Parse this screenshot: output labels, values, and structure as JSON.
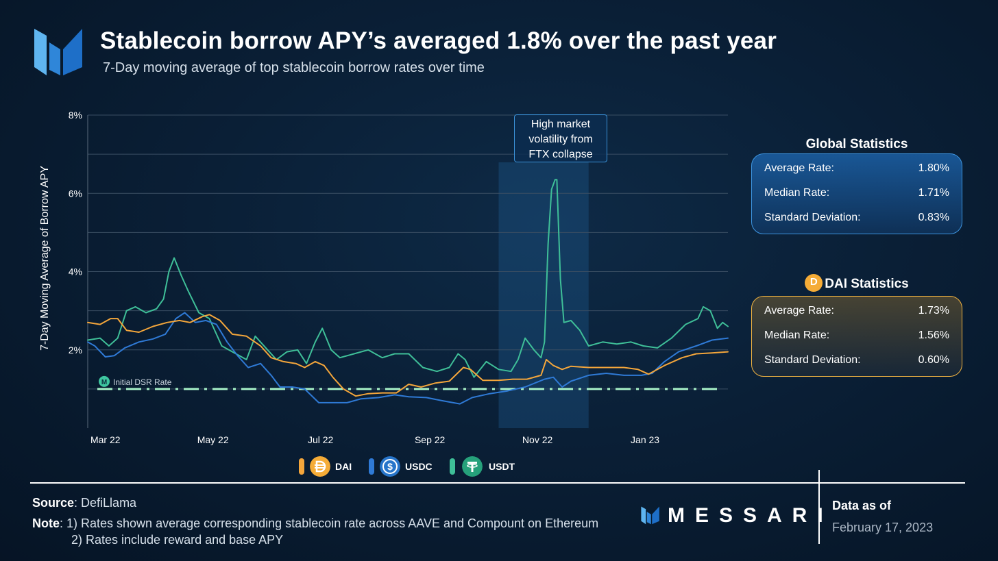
{
  "header": {
    "title": "Stablecoin borrow APY’s averaged 1.8% over the past year",
    "subtitle": "7-Day moving average of top stablecoin borrow rates over time"
  },
  "annotation": {
    "lines": [
      "High market",
      "volatility from",
      "FTX collapse"
    ]
  },
  "dsr_label": "Initial DSR Rate",
  "global_stats": {
    "title": "Global Statistics",
    "rows": [
      {
        "label": "Average Rate:",
        "value": "1.80%"
      },
      {
        "label": "Median Rate:",
        "value": "1.71%"
      },
      {
        "label": "Standard Deviation:",
        "value": "0.83%"
      }
    ]
  },
  "dai_stats": {
    "title": "DAI Statistics",
    "rows": [
      {
        "label": "Average Rate:",
        "value": "1.73%"
      },
      {
        "label": "Median Rate:",
        "value": "1.56%"
      },
      {
        "label": "Standard Deviation:",
        "value": "0.60%"
      }
    ]
  },
  "footer": {
    "source_label": "Source",
    "source_value": ": DefiLlama",
    "note_label": "Note",
    "note_line1": ": 1) Rates shown average corresponding stablecoin rate across AAVE and Compount on Ethereum",
    "note_line2": "2) Rates include reward and base APY",
    "brand": "MESSARI",
    "data_as_of_label": "Data as of",
    "data_as_of_date": "February 17, 2023"
  },
  "colors": {
    "DAI": "#f4a63b",
    "USDC": "#2f7ad6",
    "USDT": "#3fbf98",
    "dsr_line": "#a6f0c6",
    "grid": "#3a4e63",
    "highlight": "#1f5f94"
  },
  "chart_data": {
    "type": "line",
    "title": "Stablecoin borrow APY’s averaged 1.8% over the past year",
    "subtitle": "7-Day moving average of top stablecoin borrow rates over time",
    "ylabel": "7-Day Moving Average of Borrow APY",
    "xlabel": "",
    "x_range": [
      "2022-02-19",
      "2023-02-17"
    ],
    "x_ticks": [
      {
        "date": "2022-03-01",
        "label": "Mar 22"
      },
      {
        "date": "2022-05-01",
        "label": "May 22"
      },
      {
        "date": "2022-07-01",
        "label": "Jul 22"
      },
      {
        "date": "2022-09-01",
        "label": "Sep 22"
      },
      {
        "date": "2022-11-01",
        "label": "Nov 22"
      },
      {
        "date": "2023-01-01",
        "label": "Jan 23"
      }
    ],
    "ylim": [
      0,
      8
    ],
    "y_ticks": [
      {
        "value": 2,
        "label": "2%"
      },
      {
        "value": 4,
        "label": "4%"
      },
      {
        "value": 6,
        "label": "6%"
      },
      {
        "value": 8,
        "label": "8%"
      }
    ],
    "grid": true,
    "legend_position": "bottom",
    "reference_line": {
      "name": "Initial DSR Rate",
      "value": 1.0
    },
    "highlight_range": {
      "start": "2022-10-10",
      "end": "2022-11-30",
      "label": "High market volatility from FTX collapse"
    },
    "series": [
      {
        "name": "DAI",
        "points": [
          [
            "2022-02-19",
            2.7
          ],
          [
            "2022-02-26",
            2.65
          ],
          [
            "2022-03-04",
            2.8
          ],
          [
            "2022-03-08",
            2.8
          ],
          [
            "2022-03-13",
            2.5
          ],
          [
            "2022-03-20",
            2.45
          ],
          [
            "2022-03-28",
            2.6
          ],
          [
            "2022-04-05",
            2.7
          ],
          [
            "2022-04-12",
            2.75
          ],
          [
            "2022-04-18",
            2.7
          ],
          [
            "2022-04-25",
            2.85
          ],
          [
            "2022-04-29",
            2.9
          ],
          [
            "2022-05-05",
            2.75
          ],
          [
            "2022-05-12",
            2.4
          ],
          [
            "2022-05-20",
            2.35
          ],
          [
            "2022-05-28",
            2.1
          ],
          [
            "2022-06-03",
            1.8
          ],
          [
            "2022-06-10",
            1.7
          ],
          [
            "2022-06-17",
            1.65
          ],
          [
            "2022-06-22",
            1.55
          ],
          [
            "2022-06-28",
            1.7
          ],
          [
            "2022-07-03",
            1.6
          ],
          [
            "2022-07-08",
            1.3
          ],
          [
            "2022-07-14",
            1.0
          ],
          [
            "2022-07-21",
            0.82
          ],
          [
            "2022-07-28",
            0.88
          ],
          [
            "2022-08-05",
            0.9
          ],
          [
            "2022-08-13",
            0.9
          ],
          [
            "2022-08-20",
            1.12
          ],
          [
            "2022-08-27",
            1.05
          ],
          [
            "2022-09-04",
            1.15
          ],
          [
            "2022-09-12",
            1.2
          ],
          [
            "2022-09-20",
            1.55
          ],
          [
            "2022-09-24",
            1.5
          ],
          [
            "2022-10-01",
            1.22
          ],
          [
            "2022-10-10",
            1.22
          ],
          [
            "2022-10-18",
            1.25
          ],
          [
            "2022-10-26",
            1.25
          ],
          [
            "2022-11-03",
            1.35
          ],
          [
            "2022-11-06",
            1.75
          ],
          [
            "2022-11-10",
            1.6
          ],
          [
            "2022-11-15",
            1.5
          ],
          [
            "2022-11-20",
            1.58
          ],
          [
            "2022-11-30",
            1.55
          ],
          [
            "2022-12-10",
            1.55
          ],
          [
            "2022-12-20",
            1.55
          ],
          [
            "2022-12-28",
            1.5
          ],
          [
            "2023-01-03",
            1.38
          ],
          [
            "2023-01-12",
            1.6
          ],
          [
            "2023-01-22",
            1.8
          ],
          [
            "2023-01-30",
            1.9
          ],
          [
            "2023-02-08",
            1.92
          ],
          [
            "2023-02-17",
            1.95
          ]
        ]
      },
      {
        "name": "USDC",
        "points": [
          [
            "2022-02-19",
            2.2
          ],
          [
            "2022-02-23",
            2.1
          ],
          [
            "2022-03-01",
            1.82
          ],
          [
            "2022-03-06",
            1.85
          ],
          [
            "2022-03-12",
            2.05
          ],
          [
            "2022-03-20",
            2.2
          ],
          [
            "2022-03-28",
            2.28
          ],
          [
            "2022-04-04",
            2.4
          ],
          [
            "2022-04-10",
            2.8
          ],
          [
            "2022-04-15",
            2.95
          ],
          [
            "2022-04-21",
            2.7
          ],
          [
            "2022-04-27",
            2.75
          ],
          [
            "2022-05-03",
            2.65
          ],
          [
            "2022-05-09",
            2.2
          ],
          [
            "2022-05-15",
            1.85
          ],
          [
            "2022-05-21",
            1.55
          ],
          [
            "2022-05-28",
            1.65
          ],
          [
            "2022-06-03",
            1.35
          ],
          [
            "2022-06-08",
            1.05
          ],
          [
            "2022-06-15",
            1.05
          ],
          [
            "2022-06-22",
            1.0
          ],
          [
            "2022-06-30",
            0.65
          ],
          [
            "2022-07-08",
            0.65
          ],
          [
            "2022-07-16",
            0.65
          ],
          [
            "2022-07-24",
            0.75
          ],
          [
            "2022-08-03",
            0.78
          ],
          [
            "2022-08-12",
            0.85
          ],
          [
            "2022-08-20",
            0.8
          ],
          [
            "2022-08-30",
            0.78
          ],
          [
            "2022-09-08",
            0.7
          ],
          [
            "2022-09-18",
            0.62
          ],
          [
            "2022-09-25",
            0.78
          ],
          [
            "2022-10-05",
            0.88
          ],
          [
            "2022-10-15",
            0.95
          ],
          [
            "2022-10-25",
            1.05
          ],
          [
            "2022-11-05",
            1.25
          ],
          [
            "2022-11-10",
            1.3
          ],
          [
            "2022-11-15",
            1.05
          ],
          [
            "2022-11-20",
            1.2
          ],
          [
            "2022-11-30",
            1.35
          ],
          [
            "2022-12-10",
            1.4
          ],
          [
            "2022-12-20",
            1.35
          ],
          [
            "2022-12-30",
            1.35
          ],
          [
            "2023-01-05",
            1.4
          ],
          [
            "2023-01-12",
            1.7
          ],
          [
            "2023-01-20",
            1.95
          ],
          [
            "2023-01-30",
            2.1
          ],
          [
            "2023-02-08",
            2.25
          ],
          [
            "2023-02-17",
            2.3
          ]
        ]
      },
      {
        "name": "USDT",
        "points": [
          [
            "2022-02-19",
            2.25
          ],
          [
            "2022-02-26",
            2.3
          ],
          [
            "2022-03-03",
            2.1
          ],
          [
            "2022-03-08",
            2.3
          ],
          [
            "2022-03-13",
            3.0
          ],
          [
            "2022-03-18",
            3.1
          ],
          [
            "2022-03-24",
            2.95
          ],
          [
            "2022-03-30",
            3.05
          ],
          [
            "2022-04-03",
            3.3
          ],
          [
            "2022-04-06",
            4.0
          ],
          [
            "2022-04-09",
            4.35
          ],
          [
            "2022-04-13",
            3.9
          ],
          [
            "2022-04-17",
            3.5
          ],
          [
            "2022-04-23",
            2.95
          ],
          [
            "2022-04-29",
            2.8
          ],
          [
            "2022-05-06",
            2.1
          ],
          [
            "2022-05-12",
            1.95
          ],
          [
            "2022-05-20",
            1.75
          ],
          [
            "2022-05-25",
            2.35
          ],
          [
            "2022-06-01",
            2.0
          ],
          [
            "2022-06-06",
            1.75
          ],
          [
            "2022-06-12",
            1.95
          ],
          [
            "2022-06-18",
            2.0
          ],
          [
            "2022-06-23",
            1.65
          ],
          [
            "2022-06-28",
            2.2
          ],
          [
            "2022-07-02",
            2.55
          ],
          [
            "2022-07-07",
            2.0
          ],
          [
            "2022-07-12",
            1.8
          ],
          [
            "2022-07-20",
            1.9
          ],
          [
            "2022-07-28",
            2.0
          ],
          [
            "2022-08-05",
            1.8
          ],
          [
            "2022-08-12",
            1.9
          ],
          [
            "2022-08-20",
            1.9
          ],
          [
            "2022-08-28",
            1.55
          ],
          [
            "2022-09-05",
            1.45
          ],
          [
            "2022-09-12",
            1.55
          ],
          [
            "2022-09-17",
            1.9
          ],
          [
            "2022-09-21",
            1.75
          ],
          [
            "2022-09-26",
            1.3
          ],
          [
            "2022-10-03",
            1.7
          ],
          [
            "2022-10-10",
            1.5
          ],
          [
            "2022-10-17",
            1.45
          ],
          [
            "2022-10-21",
            1.75
          ],
          [
            "2022-10-25",
            2.3
          ],
          [
            "2022-10-30",
            2.0
          ],
          [
            "2022-11-03",
            1.8
          ],
          [
            "2022-11-05",
            2.2
          ],
          [
            "2022-11-07",
            4.7
          ],
          [
            "2022-11-09",
            6.1
          ],
          [
            "2022-11-11",
            6.35
          ],
          [
            "2022-11-12",
            6.35
          ],
          [
            "2022-11-14",
            3.8
          ],
          [
            "2022-11-16",
            2.7
          ],
          [
            "2022-11-20",
            2.75
          ],
          [
            "2022-11-25",
            2.5
          ],
          [
            "2022-11-30",
            2.1
          ],
          [
            "2022-12-08",
            2.2
          ],
          [
            "2022-12-16",
            2.15
          ],
          [
            "2022-12-24",
            2.2
          ],
          [
            "2022-12-31",
            2.1
          ],
          [
            "2023-01-08",
            2.05
          ],
          [
            "2023-01-16",
            2.3
          ],
          [
            "2023-01-24",
            2.65
          ],
          [
            "2023-01-31",
            2.8
          ],
          [
            "2023-02-03",
            3.1
          ],
          [
            "2023-02-07",
            3.0
          ],
          [
            "2023-02-11",
            2.55
          ],
          [
            "2023-02-14",
            2.7
          ],
          [
            "2023-02-17",
            2.6
          ]
        ]
      }
    ]
  }
}
